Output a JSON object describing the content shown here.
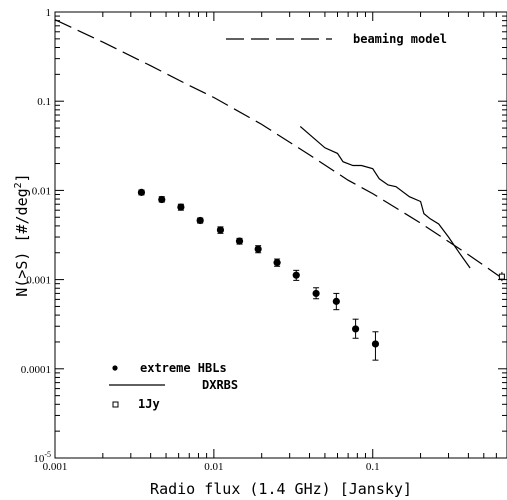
{
  "chart_data": {
    "type": "scatter",
    "xlabel": "Radio flux (1.4 GHz) [Jansky]",
    "ylabel_main": "N(>S) [#/deg",
    "ylabel_exp": "2",
    "ylabel_close": "]",
    "xscale": "log",
    "yscale": "log",
    "xlim": [
      0.001,
      0.7
    ],
    "ylim": [
      1e-05,
      1
    ],
    "x_ticks": [
      {
        "value": 0.001,
        "label": "0.001"
      },
      {
        "value": 0.01,
        "label": "0.01"
      },
      {
        "value": 0.1,
        "label": "0.1"
      }
    ],
    "y_ticks": [
      {
        "value": 1,
        "label": "1"
      },
      {
        "value": 0.1,
        "label": "0.1"
      },
      {
        "value": 0.01,
        "label": "0.01"
      },
      {
        "value": 0.001,
        "label": "0.001"
      },
      {
        "value": 0.0001,
        "label": "0.0001"
      },
      {
        "value": 1e-05,
        "label": "10",
        "exp": "-5"
      }
    ],
    "series": [
      {
        "name": "beaming model",
        "kind": "dashed-line",
        "points": [
          [
            0.001,
            0.82
          ],
          [
            0.002,
            0.46
          ],
          [
            0.004,
            0.25
          ],
          [
            0.007,
            0.15
          ],
          [
            0.01,
            0.11
          ],
          [
            0.02,
            0.055
          ],
          [
            0.04,
            0.025
          ],
          [
            0.07,
            0.013
          ],
          [
            0.1,
            0.0092
          ],
          [
            0.2,
            0.0043
          ],
          [
            0.4,
            0.0019
          ],
          [
            0.7,
            0.00095
          ]
        ]
      },
      {
        "name": "extreme HBLs",
        "kind": "points",
        "points": [
          {
            "x": 0.0035,
            "y": 0.0095,
            "lo": 0.0089,
            "hi": 0.0101
          },
          {
            "x": 0.0047,
            "y": 0.0079,
            "lo": 0.0074,
            "hi": 0.0085
          },
          {
            "x": 0.0062,
            "y": 0.0065,
            "lo": 0.006,
            "hi": 0.007
          },
          {
            "x": 0.0082,
            "y": 0.0046,
            "lo": 0.0043,
            "hi": 0.0049
          },
          {
            "x": 0.011,
            "y": 0.0036,
            "lo": 0.0033,
            "hi": 0.0039
          },
          {
            "x": 0.0145,
            "y": 0.0027,
            "lo": 0.0025,
            "hi": 0.0029
          },
          {
            "x": 0.019,
            "y": 0.0022,
            "lo": 0.002,
            "hi": 0.0024
          },
          {
            "x": 0.025,
            "y": 0.00155,
            "lo": 0.00141,
            "hi": 0.0017
          },
          {
            "x": 0.033,
            "y": 0.00112,
            "lo": 0.00098,
            "hi": 0.00127
          },
          {
            "x": 0.044,
            "y": 0.0007,
            "lo": 0.00061,
            "hi": 0.00081
          },
          {
            "x": 0.059,
            "y": 0.00057,
            "lo": 0.00046,
            "hi": 0.0007
          },
          {
            "x": 0.078,
            "y": 0.00028,
            "lo": 0.00022,
            "hi": 0.00036
          },
          {
            "x": 0.104,
            "y": 0.00019,
            "lo": 0.000125,
            "hi": 0.00026
          }
        ]
      },
      {
        "name": "DXRBS",
        "kind": "solid-line",
        "points": [
          [
            0.035,
            0.052
          ],
          [
            0.05,
            0.03
          ],
          [
            0.06,
            0.026
          ],
          [
            0.065,
            0.021
          ],
          [
            0.075,
            0.019
          ],
          [
            0.085,
            0.019
          ],
          [
            0.1,
            0.0175
          ],
          [
            0.11,
            0.0135
          ],
          [
            0.125,
            0.0115
          ],
          [
            0.14,
            0.011
          ],
          [
            0.17,
            0.0085
          ],
          [
            0.2,
            0.0075
          ],
          [
            0.21,
            0.0055
          ],
          [
            0.23,
            0.0048
          ],
          [
            0.26,
            0.0042
          ],
          [
            0.3,
            0.003
          ],
          [
            0.35,
            0.002
          ],
          [
            0.41,
            0.00135
          ]
        ]
      },
      {
        "name": "1Jy",
        "kind": "open-square",
        "points": [
          {
            "x": 0.65,
            "y": 0.00108,
            "lo": 0.00096,
            "hi": 0.00122
          }
        ]
      }
    ],
    "legend_top": "beaming model",
    "legend_bottom": [
      "extreme HBLs",
      "DXRBS",
      "1Jy"
    ]
  }
}
